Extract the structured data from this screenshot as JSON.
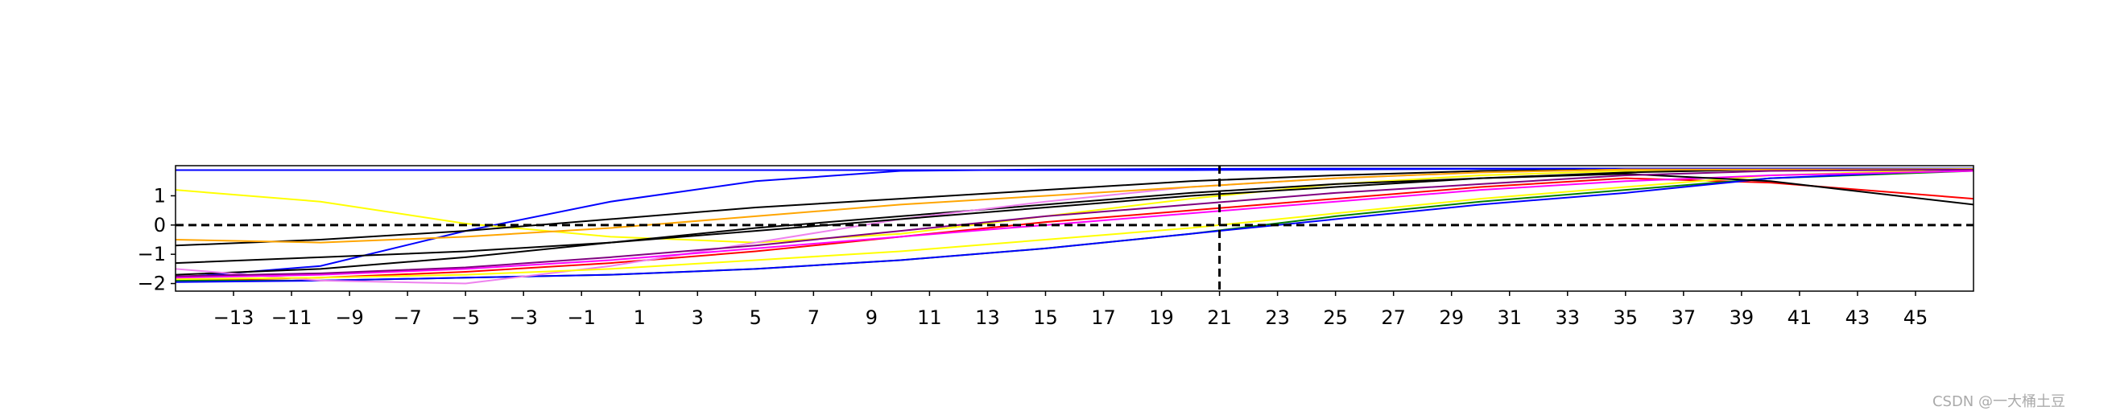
{
  "chart_data": {
    "type": "line",
    "x": [
      -15,
      -10,
      -5,
      0,
      5,
      10,
      15,
      20,
      25,
      30,
      35,
      40,
      47
    ],
    "series": [
      {
        "color": "#0000ff",
        "values": [
          1.88,
          1.88,
          1.88,
          1.88,
          1.88,
          1.88,
          1.88,
          1.88,
          1.9,
          1.92,
          1.93,
          1.93,
          1.93
        ]
      },
      {
        "color": "#0000ff",
        "values": [
          -1.8,
          -1.4,
          -0.2,
          0.8,
          1.5,
          1.85,
          1.9,
          1.92,
          1.93,
          1.93,
          1.93,
          1.93,
          1.93
        ]
      },
      {
        "color": "#ffff00",
        "values": [
          1.2,
          0.8,
          0.05,
          -0.4,
          -0.6,
          -0.3,
          0.3,
          0.9,
          1.4,
          1.7,
          1.85,
          1.9,
          1.92
        ]
      },
      {
        "color": "#000000",
        "values": [
          -0.7,
          -0.5,
          -0.2,
          0.2,
          0.6,
          0.9,
          1.2,
          1.5,
          1.7,
          1.85,
          1.9,
          1.9,
          1.9
        ]
      },
      {
        "color": "#000000",
        "values": [
          -1.7,
          -1.5,
          -1.1,
          -0.6,
          -0.1,
          0.3,
          0.7,
          1.1,
          1.4,
          1.6,
          1.8,
          1.9,
          1.9
        ]
      },
      {
        "color": "#ff0000",
        "values": [
          -1.9,
          -1.8,
          -1.6,
          -1.3,
          -0.9,
          -0.4,
          0.1,
          0.5,
          0.9,
          1.3,
          1.6,
          1.45,
          0.9
        ]
      },
      {
        "color": "#008000",
        "values": [
          -1.9,
          -1.9,
          -1.8,
          -1.7,
          -1.5,
          -1.2,
          -0.8,
          -0.3,
          0.3,
          0.8,
          1.2,
          1.6,
          1.85
        ]
      },
      {
        "color": "#0000ff",
        "values": [
          -1.95,
          -1.9,
          -1.8,
          -1.7,
          -1.5,
          -1.2,
          -0.8,
          -0.3,
          0.2,
          0.7,
          1.1,
          1.6,
          1.9
        ]
      },
      {
        "color": "#ee82ee",
        "values": [
          -1.5,
          -1.9,
          -2.0,
          -1.4,
          -0.6,
          0.2,
          0.8,
          1.3,
          1.6,
          1.8,
          1.9,
          1.9,
          1.9
        ]
      },
      {
        "color": "#ffff00",
        "values": [
          -1.85,
          -1.8,
          -1.7,
          -1.5,
          -1.2,
          -0.9,
          -0.5,
          -0.1,
          0.4,
          0.9,
          1.3,
          1.7,
          1.92
        ]
      },
      {
        "color": "#ff00ff",
        "values": [
          -1.8,
          -1.7,
          -1.5,
          -1.2,
          -0.8,
          -0.4,
          0.0,
          0.4,
          0.8,
          1.2,
          1.5,
          1.7,
          1.85
        ]
      },
      {
        "color": "#000000",
        "values": [
          -1.3,
          -1.1,
          -0.9,
          -0.6,
          -0.2,
          0.2,
          0.6,
          1.0,
          1.3,
          1.6,
          1.75,
          1.5,
          0.7
        ]
      },
      {
        "color": "#ffa500",
        "values": [
          -0.5,
          -0.6,
          -0.4,
          -0.1,
          0.3,
          0.7,
          1.0,
          1.3,
          1.6,
          1.8,
          1.9,
          1.9,
          1.9
        ]
      },
      {
        "color": "#800080",
        "values": [
          -1.75,
          -1.65,
          -1.45,
          -1.1,
          -0.7,
          -0.2,
          0.3,
          0.7,
          1.1,
          1.4,
          1.7,
          1.85,
          1.9
        ]
      }
    ],
    "xlim": [
      -15,
      47
    ],
    "ylim": [
      -2.26,
      2.03
    ],
    "xticks": [
      {
        "value": -13,
        "label": "−13"
      },
      {
        "value": -11,
        "label": "−11"
      },
      {
        "value": -9,
        "label": "−9"
      },
      {
        "value": -7,
        "label": "−7"
      },
      {
        "value": -5,
        "label": "−5"
      },
      {
        "value": -3,
        "label": "−3"
      },
      {
        "value": -1,
        "label": "−1"
      },
      1,
      3,
      5,
      7,
      9,
      11,
      13,
      15,
      17,
      19,
      21,
      23,
      25,
      27,
      29,
      31,
      33,
      35,
      37,
      39,
      41,
      43,
      45
    ],
    "yticks": [
      {
        "value": -2,
        "label": "−2"
      },
      {
        "value": -1,
        "label": "−1"
      },
      0,
      1
    ],
    "hline": 0,
    "vline": 21,
    "grid": false,
    "watermark": "CSDN @一大桶土豆"
  }
}
